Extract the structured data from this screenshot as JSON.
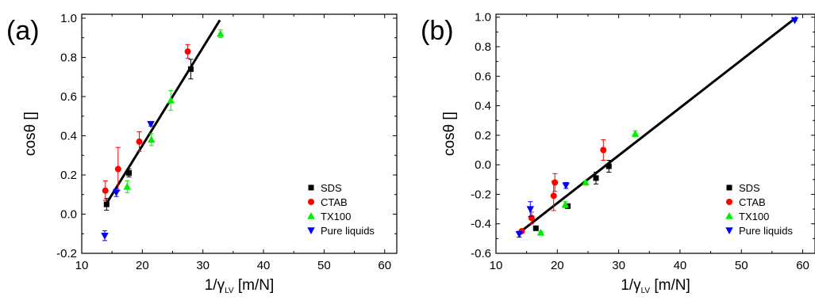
{
  "chart_data": [
    {
      "panel": "(a)",
      "type": "scatter",
      "xlabel": "1/γ",
      "xlabel_sub": "LV",
      "xlabel_unit": "[m/N]",
      "ylabel": "cosθ []",
      "xlim": [
        10,
        62
      ],
      "ylim": [
        -0.2,
        1.02
      ],
      "xticks": [
        10,
        20,
        30,
        40,
        50,
        60
      ],
      "yticks": [
        -0.2,
        0.0,
        0.2,
        0.4,
        0.6,
        0.8,
        1.0
      ],
      "ytick_labels": [
        "-0.2",
        "0.0",
        "0.2",
        "0.4",
        "0.6",
        "0.8",
        "1.0"
      ],
      "legend_position": "bottom-right",
      "fit_line": {
        "x": [
          14,
          32.8
        ],
        "y": [
          0.05,
          0.99
        ]
      },
      "series": [
        {
          "name": "SDS",
          "marker": "square",
          "color": "#000000",
          "x": [
            14.1,
            17.8,
            28.0
          ],
          "y": [
            0.05,
            0.21,
            0.74
          ],
          "err": [
            0.03,
            0.02,
            0.05
          ]
        },
        {
          "name": "CTAB",
          "marker": "circle",
          "color": "#ff0000",
          "x": [
            13.9,
            16.0,
            19.5,
            27.5
          ],
          "y": [
            0.12,
            0.23,
            0.37,
            0.83
          ],
          "err": [
            0.05,
            0.11,
            0.05,
            0.035
          ]
        },
        {
          "name": "TX100",
          "marker": "triangle-up",
          "color": "#00ee00",
          "x": [
            17.5,
            21.5,
            24.7,
            32.9
          ],
          "y": [
            0.14,
            0.38,
            0.58,
            0.92
          ],
          "err": [
            0.03,
            0.03,
            0.05,
            0.02
          ]
        },
        {
          "name": "Pure liquids",
          "marker": "triangle-down",
          "color": "#0000ff",
          "x": [
            13.8,
            15.7,
            21.4
          ],
          "y": [
            -0.11,
            0.11,
            0.46
          ],
          "err": [
            0.025,
            0.02,
            0.01
          ]
        }
      ]
    },
    {
      "panel": "(b)",
      "type": "scatter",
      "xlabel": "1/γ",
      "xlabel_sub": "LV",
      "xlabel_unit": "[m/N]",
      "ylabel": "cosθ []",
      "xlim": [
        10,
        62
      ],
      "ylim": [
        -0.6,
        1.02
      ],
      "xticks": [
        10,
        20,
        30,
        40,
        50,
        60
      ],
      "yticks": [
        -0.6,
        -0.4,
        -0.2,
        0.0,
        0.2,
        0.4,
        0.6,
        0.8,
        1.0
      ],
      "ytick_labels": [
        "-0.6",
        "-0.4",
        "-0.2",
        "0.0",
        "0.2",
        "0.4",
        "0.6",
        "0.8",
        "1.0"
      ],
      "legend_position": "bottom-right",
      "fit_line": {
        "x": [
          13.8,
          59.0
        ],
        "y": [
          -0.46,
          1.0
        ]
      },
      "series": [
        {
          "name": "SDS",
          "marker": "square",
          "color": "#000000",
          "x": [
            16.5,
            21.7,
            26.3,
            28.4
          ],
          "y": [
            -0.43,
            -0.28,
            -0.09,
            -0.01
          ],
          "err": [
            0.01,
            0.01,
            0.04,
            0.04
          ]
        },
        {
          "name": "CTAB",
          "marker": "circle",
          "color": "#ff0000",
          "x": [
            14.2,
            15.8,
            19.4,
            19.6,
            27.5
          ],
          "y": [
            -0.45,
            -0.36,
            -0.21,
            -0.12,
            0.1
          ],
          "err": [
            0.01,
            0.04,
            0.1,
            0.06,
            0.07
          ]
        },
        {
          "name": "TX100",
          "marker": "triangle-up",
          "color": "#00ee00",
          "x": [
            17.3,
            21.3,
            24.6,
            32.7
          ],
          "y": [
            -0.46,
            -0.27,
            -0.12,
            0.21
          ],
          "err": [
            0.01,
            0.02,
            0.01,
            0.02
          ]
        },
        {
          "name": "Pure liquids",
          "marker": "triangle-down",
          "color": "#0000ff",
          "x": [
            13.8,
            15.6,
            21.4,
            58.7
          ],
          "y": [
            -0.47,
            -0.3,
            -0.14,
            0.98
          ],
          "err": [
            0.02,
            0.05,
            0.02,
            0.005
          ]
        }
      ]
    }
  ]
}
